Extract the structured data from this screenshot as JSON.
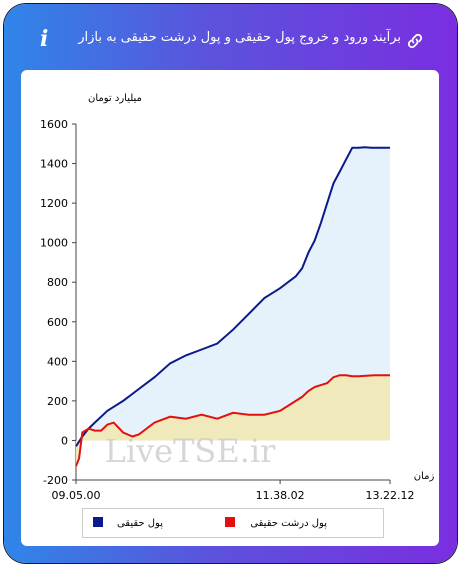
{
  "header": {
    "title": "برآیند ورود و خروج پول حقیقی و پول درشت حقیقی به بازار",
    "info_icon": "i",
    "link_icon": "link-icon"
  },
  "watermark": "LiveTSE.ir",
  "colors": {
    "real_money": "#0a1a8c",
    "real_money_fill": "#e6f2fb",
    "big_money": "#e31010",
    "big_money_fill": "#efe9bb"
  },
  "chart_data": {
    "type": "area",
    "ylabel": "میلیارد تومان",
    "xlabel": "زمان",
    "ylim": [
      -200,
      1600
    ],
    "yticks": [
      -200,
      0,
      200,
      400,
      600,
      800,
      1000,
      1200,
      1400,
      1600
    ],
    "xticks": [
      "09.05.00",
      "11.38.02",
      "13.22.12"
    ],
    "series": [
      {
        "name": "پول حقیقی",
        "x": [
          0,
          2,
          4,
          6,
          8,
          10,
          12,
          15,
          20,
          25,
          30,
          35,
          40,
          45,
          50,
          55,
          60,
          65,
          70,
          72,
          74,
          76,
          78,
          80,
          82,
          84,
          86,
          88,
          90,
          92,
          94,
          96,
          98,
          100
        ],
        "y": [
          -30,
          20,
          60,
          90,
          120,
          150,
          170,
          200,
          260,
          320,
          390,
          430,
          460,
          490,
          560,
          640,
          720,
          770,
          830,
          870,
          950,
          1010,
          1100,
          1200,
          1300,
          1360,
          1420,
          1480,
          1480,
          1482,
          1480,
          1480,
          1480,
          1480
        ]
      },
      {
        "name": "پول درشت حقیقی",
        "x": [
          0,
          1,
          2,
          4,
          6,
          8,
          10,
          12,
          15,
          18,
          20,
          25,
          30,
          35,
          40,
          45,
          50,
          55,
          60,
          65,
          70,
          72,
          74,
          76,
          78,
          80,
          82,
          84,
          86,
          88,
          90,
          95,
          100
        ],
        "y": [
          -130,
          -90,
          40,
          60,
          50,
          50,
          80,
          90,
          40,
          20,
          30,
          90,
          120,
          110,
          130,
          110,
          140,
          130,
          130,
          150,
          200,
          220,
          250,
          270,
          280,
          290,
          320,
          330,
          330,
          325,
          325,
          330,
          330
        ]
      }
    ],
    "legend_placement": "bottom"
  }
}
